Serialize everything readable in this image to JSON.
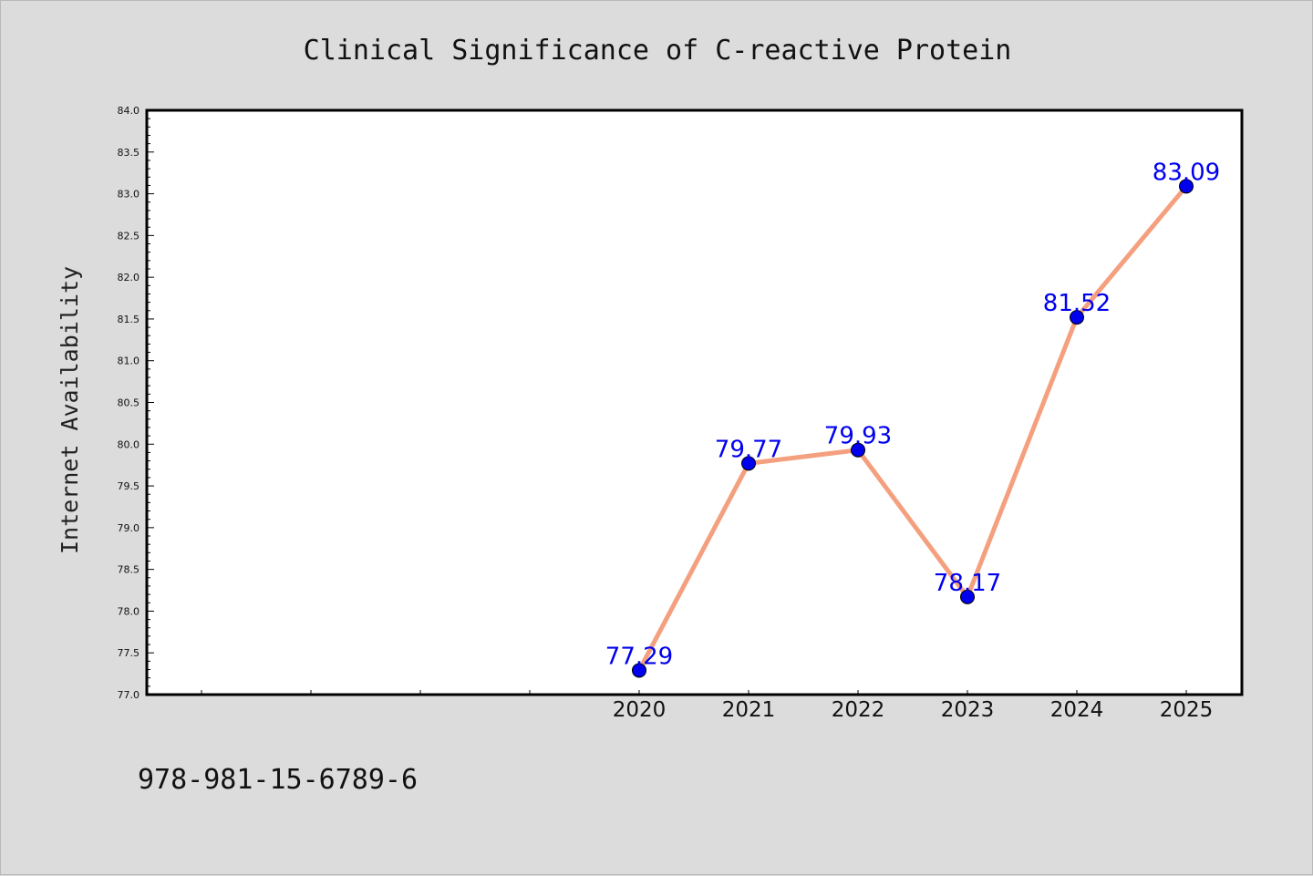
{
  "chart_data": {
    "type": "line",
    "title": "Clinical Significance of C-reactive Protein",
    "xlabel": "",
    "ylabel": "Internet Availability",
    "categories": [
      "2020",
      "2021",
      "2022",
      "2023",
      "2024",
      "2025"
    ],
    "series": [
      {
        "values": [
          77.29,
          79.77,
          79.93,
          78.17,
          81.52,
          83.09
        ],
        "color": "#f4a07f",
        "marker_color": "#0000ee"
      }
    ],
    "data_labels": [
      "77.29",
      "79.77",
      "79.93",
      "78.17",
      "81.52",
      "83.09"
    ],
    "ylim": [
      77.0,
      84.0
    ],
    "y_ticks": [
      "77.0",
      "77.5",
      "78.0",
      "78.5",
      "79.0",
      "79.5",
      "80.0",
      "80.5",
      "81.0",
      "81.5",
      "82.0",
      "82.5",
      "83.0",
      "83.5",
      "84.0"
    ],
    "grid": false,
    "legend": "none",
    "label_color": "#0000ee",
    "background": "#dcdcdc",
    "plot_background": "#ffffff"
  },
  "footer": {
    "isbn": "978-981-15-6789-6"
  }
}
